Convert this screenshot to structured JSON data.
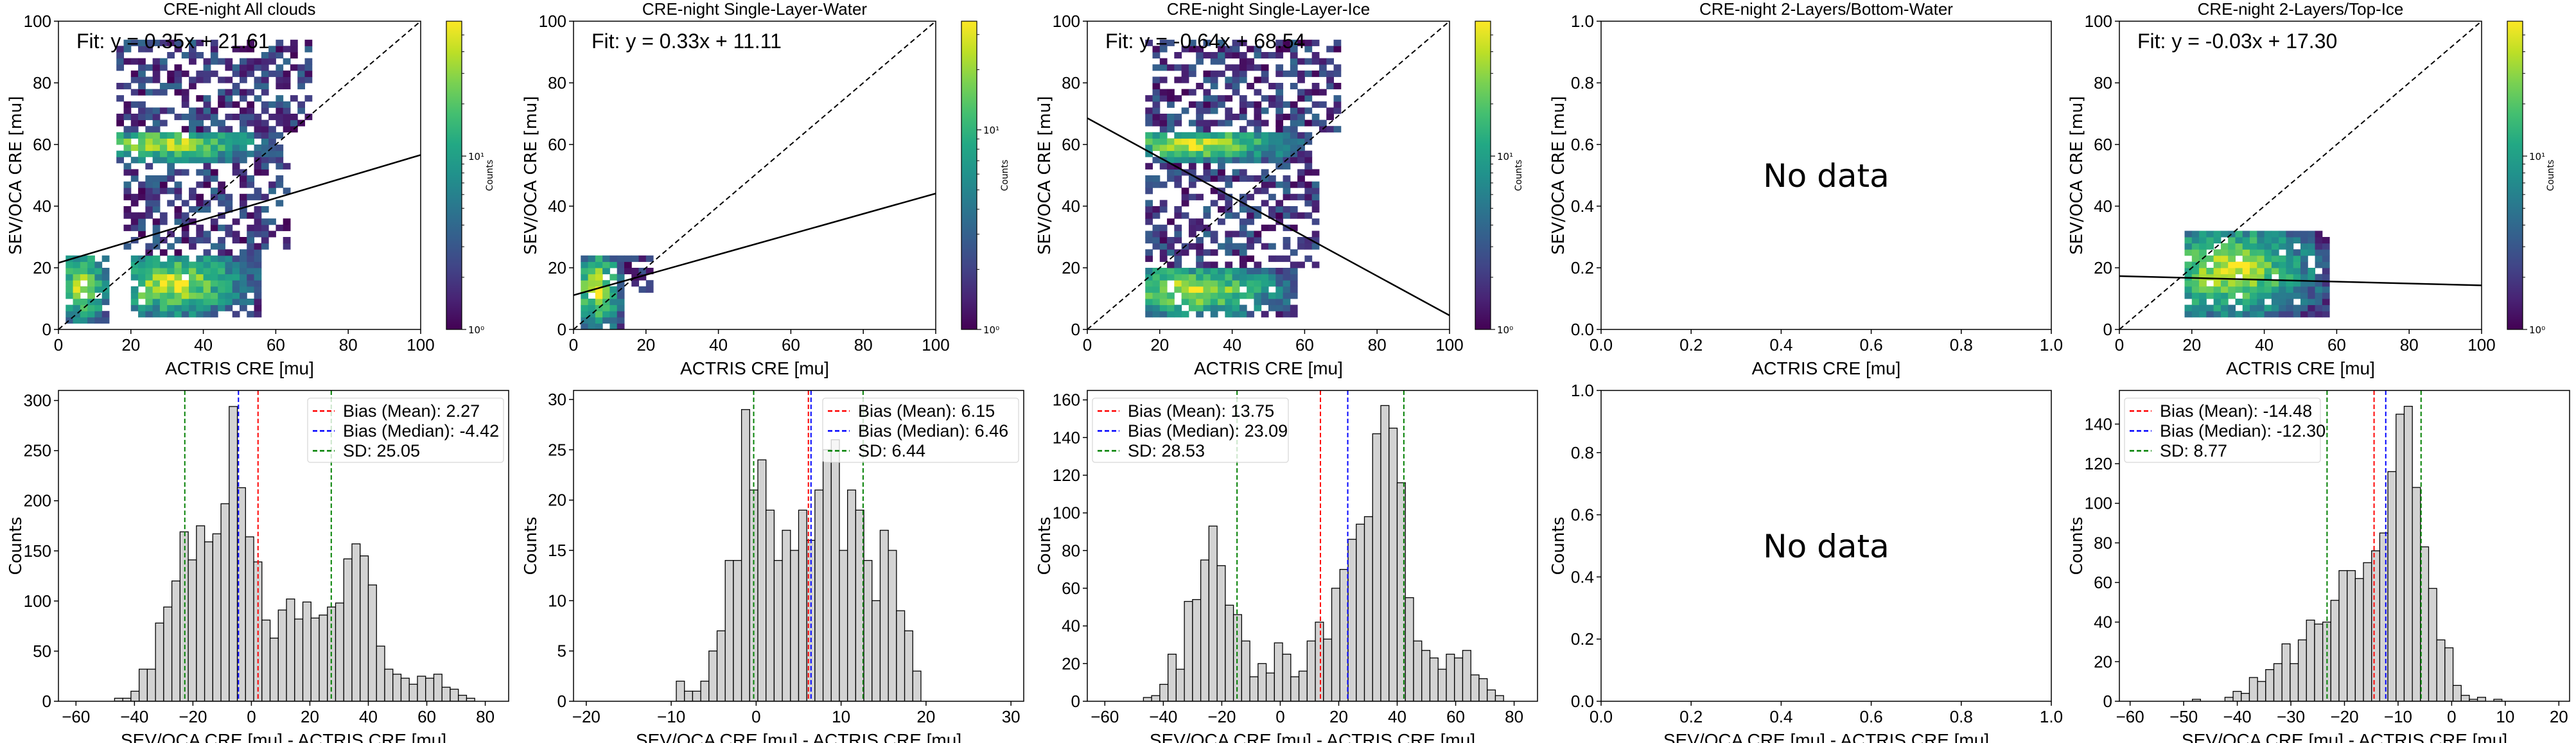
{
  "figure": {
    "top_row_xlabel": "ACTRIS CRE [mu]",
    "top_row_ylabel": "SEV/OCA CRE [mu]",
    "bottom_row_xlabel": "SEV/OCA CRE [mu] - ACTRIS CRE [mu]",
    "bottom_row_ylabel": "Counts",
    "colorbar_label": "Counts",
    "colorbar_ticks": [
      "10⁰",
      "10¹"
    ],
    "no_data_text": "No data"
  },
  "chart_data": [
    {
      "type": "heatmap",
      "panel": "top-1",
      "title": "CRE-night All clouds",
      "xlabel": "ACTRIS CRE [mu]",
      "ylabel": "SEV/OCA CRE [mu]",
      "xlim": [
        0,
        100
      ],
      "ylim": [
        0,
        100
      ],
      "xticks": [
        "0",
        "20",
        "40",
        "60",
        "80",
        "100"
      ],
      "yticks": [
        "0",
        "20",
        "40",
        "60",
        "80",
        "100"
      ],
      "fit_label": "Fit: y = 0.35x + 21.61",
      "fit": {
        "slope": 0.35,
        "intercept": 21.61
      },
      "one_to_one_line": true,
      "colorbar": {
        "scale": "log",
        "label": "Counts",
        "range": [
          1,
          60
        ]
      },
      "clusters": [
        {
          "x": [
            2,
            14
          ],
          "y": [
            2,
            24
          ],
          "peak": 20
        },
        {
          "x": [
            20,
            56
          ],
          "y": [
            4,
            24
          ],
          "peak": 60
        },
        {
          "x": [
            16,
            62
          ],
          "y": [
            54,
            64
          ],
          "peak": 60
        },
        {
          "x": [
            18,
            64
          ],
          "y": [
            24,
            54
          ],
          "peak": 3
        },
        {
          "x": [
            16,
            70
          ],
          "y": [
            64,
            94
          ],
          "peak": 4
        }
      ]
    },
    {
      "type": "heatmap",
      "panel": "top-2",
      "title": "CRE-night Single-Layer-Water",
      "xlabel": "ACTRIS CRE [mu]",
      "ylabel": "SEV/OCA CRE [mu]",
      "xlim": [
        0,
        100
      ],
      "ylim": [
        0,
        100
      ],
      "xticks": [
        "0",
        "20",
        "40",
        "60",
        "80",
        "100"
      ],
      "yticks": [
        "0",
        "20",
        "40",
        "60",
        "80",
        "100"
      ],
      "fit_label": "Fit: y = 0.33x + 11.11",
      "fit": {
        "slope": 0.33,
        "intercept": 11.11
      },
      "one_to_one_line": true,
      "colorbar": {
        "scale": "log",
        "label": "Counts",
        "range": [
          1,
          35
        ]
      },
      "clusters": [
        {
          "x": [
            2,
            14
          ],
          "y": [
            0,
            24
          ],
          "peak": 30
        },
        {
          "x": [
            14,
            22
          ],
          "y": [
            12,
            24
          ],
          "peak": 1
        }
      ]
    },
    {
      "type": "heatmap",
      "panel": "top-3",
      "title": "CRE-night Single-Layer-Ice",
      "xlabel": "ACTRIS CRE [mu]",
      "ylabel": "SEV/OCA CRE [mu]",
      "xlim": [
        0,
        100
      ],
      "ylim": [
        0,
        100
      ],
      "xticks": [
        "0",
        "20",
        "40",
        "60",
        "80",
        "100"
      ],
      "yticks": [
        "0",
        "20",
        "40",
        "60",
        "80",
        "100"
      ],
      "fit_label": "Fit: y = -0.64x + 68.54",
      "fit": {
        "slope": -0.64,
        "intercept": 68.54
      },
      "one_to_one_line": true,
      "colorbar": {
        "scale": "log",
        "label": "Counts",
        "range": [
          1,
          60
        ]
      },
      "clusters": [
        {
          "x": [
            16,
            58
          ],
          "y": [
            4,
            20
          ],
          "peak": 15
        },
        {
          "x": [
            16,
            62
          ],
          "y": [
            54,
            64
          ],
          "peak": 60
        },
        {
          "x": [
            16,
            64
          ],
          "y": [
            20,
            54
          ],
          "peak": 3
        },
        {
          "x": [
            16,
            70
          ],
          "y": [
            64,
            94
          ],
          "peak": 4
        }
      ]
    },
    {
      "type": "heatmap",
      "panel": "top-4",
      "title": "CRE-night 2-Layers/Bottom-Water",
      "xlabel": "ACTRIS CRE [mu]",
      "ylabel": "SEV/OCA CRE [mu]",
      "xlim": [
        0,
        1
      ],
      "ylim": [
        0,
        1
      ],
      "xticks": [
        "0.0",
        "0.2",
        "0.4",
        "0.6",
        "0.8",
        "1.0"
      ],
      "yticks": [
        "0.0",
        "0.2",
        "0.4",
        "0.6",
        "0.8",
        "1.0"
      ],
      "annotation": "No data",
      "no_data": true
    },
    {
      "type": "heatmap",
      "panel": "top-5",
      "title": "CRE-night 2-Layers/Top-Ice",
      "xlabel": "ACTRIS CRE [mu]",
      "ylabel": "SEV/OCA CRE [mu]",
      "xlim": [
        0,
        100
      ],
      "ylim": [
        0,
        100
      ],
      "xticks": [
        "0",
        "20",
        "40",
        "60",
        "80",
        "100"
      ],
      "yticks": [
        "0",
        "20",
        "40",
        "60",
        "80",
        "100"
      ],
      "fit_label": "Fit: y = -0.03x + 17.30",
      "fit": {
        "slope": -0.03,
        "intercept": 17.3
      },
      "one_to_one_line": true,
      "colorbar": {
        "scale": "log",
        "label": "Counts",
        "range": [
          1,
          60
        ]
      },
      "clusters": [
        {
          "x": [
            18,
            58
          ],
          "y": [
            4,
            32
          ],
          "peak": 55
        }
      ]
    },
    {
      "type": "bar",
      "panel": "bottom-1",
      "title": "",
      "xlabel": "SEV/OCA CRE [mu] - ACTRIS CRE [mu]",
      "ylabel": "Counts",
      "xlim": [
        -66,
        88
      ],
      "ylim": [
        0,
        310
      ],
      "xticks": [
        -60,
        -40,
        -20,
        0,
        20,
        40,
        60,
        80
      ],
      "yticks": [
        0,
        50,
        100,
        150,
        200,
        250,
        300
      ],
      "bin_start": -58.0,
      "bin_width": 2.8,
      "values": [
        0,
        0,
        0,
        0,
        3,
        3,
        10,
        32,
        32,
        78,
        94,
        120,
        169,
        141,
        175,
        159,
        167,
        197,
        294,
        213,
        164,
        139,
        81,
        63,
        91,
        102,
        82,
        99,
        83,
        86,
        94,
        98,
        142,
        157,
        145,
        116,
        55,
        32,
        27,
        23,
        17,
        25,
        23,
        27,
        14,
        12,
        6,
        3,
        0,
        0,
        0
      ],
      "vlines": [
        {
          "name": "mean",
          "x": 2.27,
          "color": "#ff0000"
        },
        {
          "name": "median",
          "x": -4.42,
          "color": "#0000ff"
        },
        {
          "name": "sd-low",
          "x": -22.78,
          "color": "#008000"
        },
        {
          "name": "sd-high",
          "x": 27.32,
          "color": "#008000"
        }
      ],
      "legend": {
        "position": "top-right",
        "entries": [
          {
            "label": "Bias (Mean): 2.27",
            "color": "#ff0000"
          },
          {
            "label": "Bias (Median): -4.42",
            "color": "#0000ff"
          },
          {
            "label": "SD: 25.05",
            "color": "#008000"
          }
        ]
      }
    },
    {
      "type": "bar",
      "panel": "bottom-2",
      "title": "",
      "xlabel": "SEV/OCA CRE [mu] - ACTRIS CRE [mu]",
      "ylabel": "Counts",
      "xlim": [
        -21.5,
        31.5
      ],
      "ylim": [
        0,
        30.9
      ],
      "xticks": [
        -20,
        -10,
        0,
        10,
        20,
        30
      ],
      "yticks": [
        0,
        5,
        10,
        15,
        20,
        25,
        30
      ],
      "bin_start": -19.0,
      "bin_width": 0.96,
      "values": [
        0,
        0,
        0,
        0,
        0,
        0,
        0,
        0,
        0,
        0,
        2,
        1,
        1,
        2,
        5,
        7,
        14,
        14,
        29,
        21,
        24,
        19,
        14,
        17,
        15,
        19,
        16,
        21,
        25,
        26,
        15,
        21,
        19,
        14,
        10,
        17,
        15,
        9,
        7,
        3,
        0,
        0,
        0,
        0,
        0,
        0,
        0,
        0,
        0,
        0
      ],
      "vlines": [
        {
          "name": "mean",
          "x": 6.15,
          "color": "#ff0000"
        },
        {
          "name": "median",
          "x": 6.46,
          "color": "#0000ff"
        },
        {
          "name": "sd-low",
          "x": -0.29,
          "color": "#008000"
        },
        {
          "name": "sd-high",
          "x": 12.59,
          "color": "#008000"
        }
      ],
      "legend": {
        "position": "top-right",
        "entries": [
          {
            "label": "Bias (Mean): 6.15",
            "color": "#ff0000"
          },
          {
            "label": "Bias (Median): 6.46",
            "color": "#0000ff"
          },
          {
            "label": "SD: 6.44",
            "color": "#008000"
          }
        ]
      }
    },
    {
      "type": "bar",
      "panel": "bottom-3",
      "title": "",
      "xlabel": "SEV/OCA CRE [mu] - ACTRIS CRE [mu]",
      "ylabel": "Counts",
      "xlim": [
        -66,
        88
      ],
      "ylim": [
        0,
        165
      ],
      "xticks": [
        -60,
        -40,
        -20,
        0,
        20,
        40,
        60,
        80
      ],
      "yticks": [
        0,
        20,
        40,
        60,
        80,
        100,
        120,
        140,
        160
      ],
      "bin_start": -58.0,
      "bin_width": 2.8,
      "values": [
        0,
        0,
        0,
        0,
        2,
        3,
        9,
        25,
        17,
        53,
        54,
        75,
        93,
        72,
        51,
        46,
        32,
        13,
        20,
        15,
        31,
        25,
        13,
        16,
        32,
        42,
        33,
        60,
        70,
        86,
        94,
        98,
        142,
        157,
        145,
        116,
        55,
        32,
        27,
        23,
        17,
        25,
        23,
        27,
        14,
        12,
        6,
        3,
        0,
        0,
        0
      ],
      "vlines": [
        {
          "name": "mean",
          "x": 13.75,
          "color": "#ff0000"
        },
        {
          "name": "median",
          "x": 23.09,
          "color": "#0000ff"
        },
        {
          "name": "sd-low",
          "x": -14.78,
          "color": "#008000"
        },
        {
          "name": "sd-high",
          "x": 42.28,
          "color": "#008000"
        }
      ],
      "legend": {
        "position": "top-left",
        "entries": [
          {
            "label": "Bias (Mean): 13.75",
            "color": "#ff0000"
          },
          {
            "label": "Bias (Median): 23.09",
            "color": "#0000ff"
          },
          {
            "label": "SD: 28.53",
            "color": "#008000"
          }
        ]
      }
    },
    {
      "type": "bar",
      "panel": "bottom-4",
      "title": "",
      "xlabel": "SEV/OCA CRE [mu] - ACTRIS CRE [mu]",
      "ylabel": "Counts",
      "xlim": [
        0,
        1
      ],
      "ylim": [
        0,
        1
      ],
      "xticks": [
        "0.0",
        "0.2",
        "0.4",
        "0.6",
        "0.8",
        "1.0"
      ],
      "yticks": [
        "0.0",
        "0.2",
        "0.4",
        "0.6",
        "0.8",
        "1.0"
      ],
      "annotation": "No data",
      "no_data": true
    },
    {
      "type": "bar",
      "panel": "bottom-5",
      "title": "",
      "xlabel": "SEV/OCA CRE [mu] - ACTRIS CRE [mu]",
      "ylabel": "Counts",
      "xlim": [
        -62,
        22
      ],
      "ylim": [
        0,
        157
      ],
      "xticks": [
        -60,
        -50,
        -40,
        -30,
        -20,
        -10,
        0,
        10,
        20
      ],
      "yticks": [
        0,
        20,
        40,
        60,
        80,
        100,
        120,
        140
      ],
      "bin_start": -57.5,
      "bin_width": 1.52,
      "values": [
        0,
        0,
        0,
        0,
        0,
        0,
        1,
        0,
        0,
        0,
        2,
        5,
        4,
        12,
        10,
        16,
        19,
        29,
        19,
        31,
        41,
        39,
        40,
        51,
        66,
        66,
        62,
        70,
        76,
        85,
        116,
        145,
        149,
        108,
        78,
        57,
        31,
        27,
        8,
        3,
        1,
        2,
        0,
        1,
        0,
        0,
        0,
        0,
        0,
        0
      ],
      "vlines": [
        {
          "name": "mean",
          "x": -14.48,
          "color": "#ff0000"
        },
        {
          "name": "median",
          "x": -12.3,
          "color": "#0000ff"
        },
        {
          "name": "sd-low",
          "x": -23.25,
          "color": "#008000"
        },
        {
          "name": "sd-high",
          "x": -5.71,
          "color": "#008000"
        }
      ],
      "legend": {
        "position": "top-left",
        "entries": [
          {
            "label": "Bias (Mean): -14.48",
            "color": "#ff0000"
          },
          {
            "label": "Bias (Median): -12.30",
            "color": "#0000ff"
          },
          {
            "label": "SD: 8.77",
            "color": "#008000"
          }
        ]
      }
    }
  ]
}
